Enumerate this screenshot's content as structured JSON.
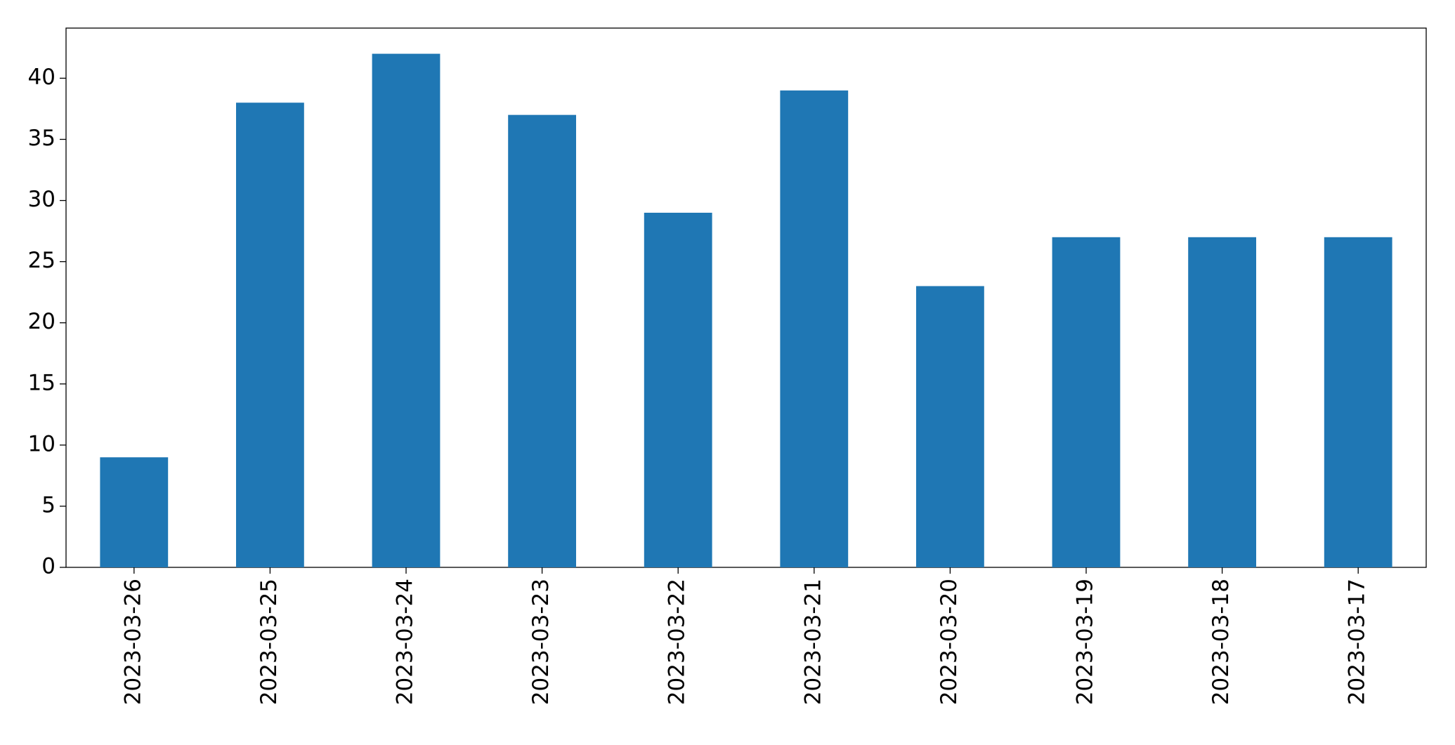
{
  "chart_data": {
    "type": "bar",
    "categories": [
      "2023-03-26",
      "2023-03-25",
      "2023-03-24",
      "2023-03-23",
      "2023-03-22",
      "2023-03-21",
      "2023-03-20",
      "2023-03-19",
      "2023-03-18",
      "2023-03-17"
    ],
    "values": [
      9,
      38,
      42,
      37,
      29,
      39,
      23,
      27,
      27,
      27
    ],
    "color": "#1f77b4",
    "ylim": [
      0,
      44.1
    ],
    "yticks": [
      0,
      5,
      10,
      15,
      20,
      25,
      30,
      35,
      40
    ],
    "grid": false
  }
}
